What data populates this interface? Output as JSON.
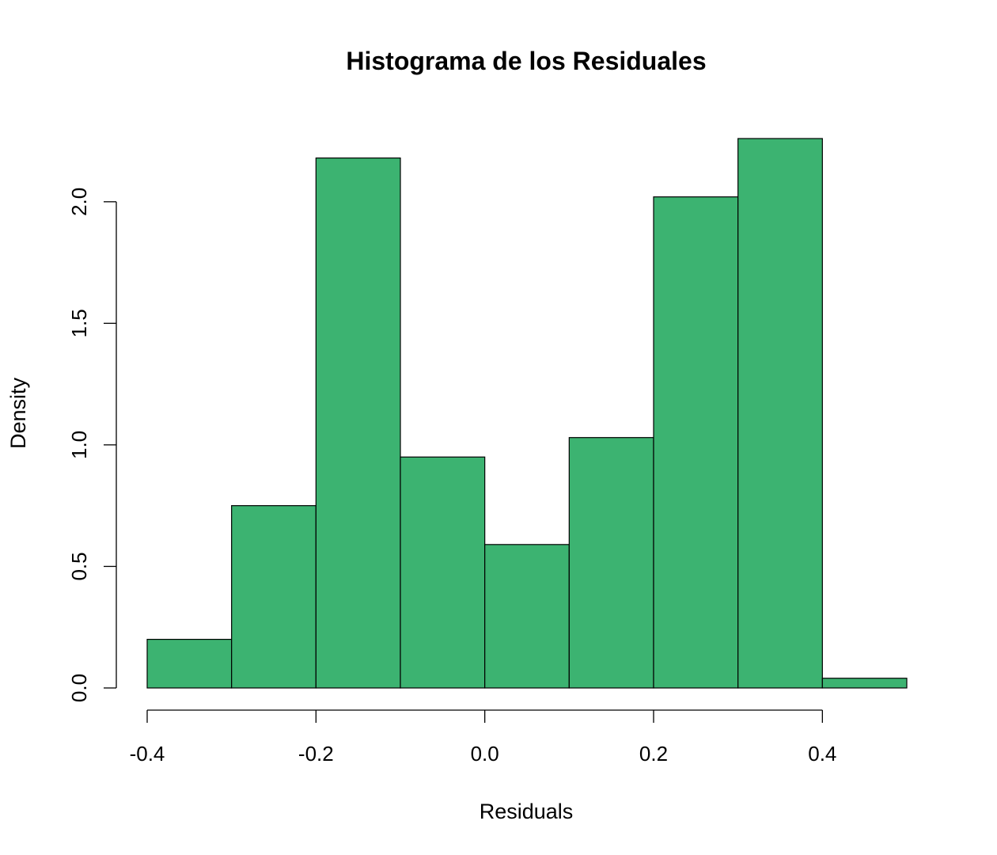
{
  "chart_data": {
    "type": "bar",
    "title": "Histograma de los Residuales",
    "xlabel": "Residuals",
    "ylabel": "Density",
    "bin_edges": [
      -0.4,
      -0.3,
      -0.2,
      -0.1,
      0.0,
      0.1,
      0.2,
      0.3,
      0.4,
      0.5
    ],
    "values": [
      0.2,
      0.75,
      2.18,
      0.95,
      0.59,
      1.03,
      2.02,
      2.26,
      0.04
    ],
    "xlim": [
      -0.4,
      0.5
    ],
    "ylim": [
      0,
      2.26
    ],
    "x_ticks": [
      -0.4,
      -0.2,
      0.0,
      0.2,
      0.4
    ],
    "x_tick_labels": [
      "-0.4",
      "-0.2",
      "0.0",
      "0.2",
      "0.4"
    ],
    "y_ticks": [
      0.0,
      0.5,
      1.0,
      1.5,
      2.0
    ],
    "y_tick_labels": [
      "0.0",
      "0.5",
      "1.0",
      "1.5",
      "2.0"
    ],
    "bar_color": "#3CB371",
    "grid": false
  }
}
